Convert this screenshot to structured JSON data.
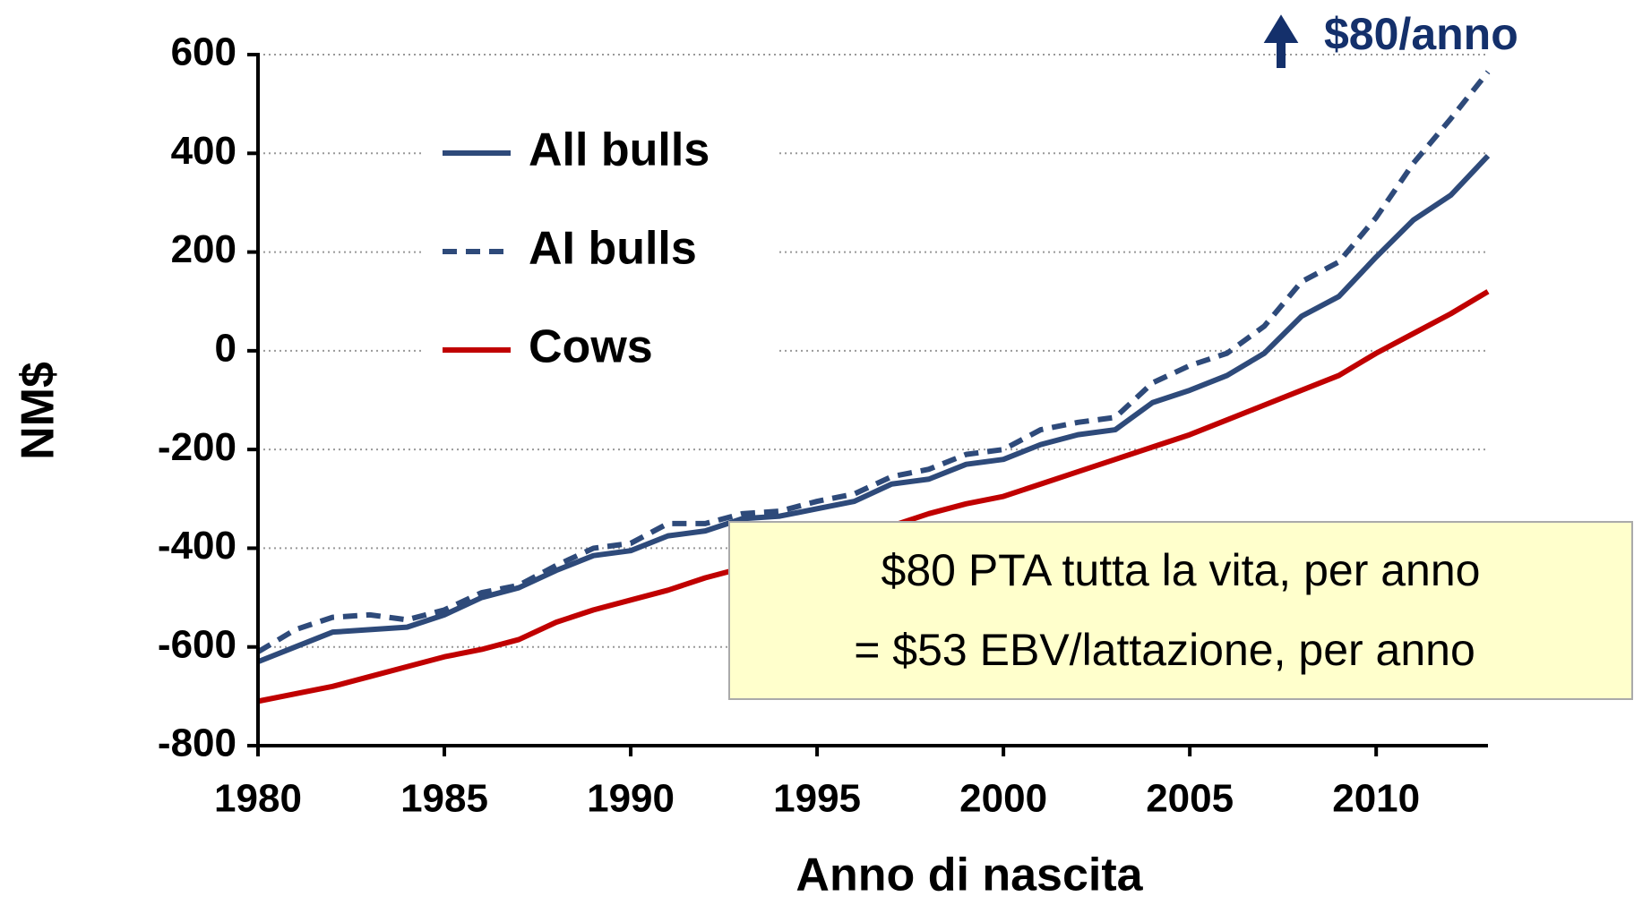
{
  "chart_data": {
    "type": "line",
    "annotation": "$80/anno",
    "box_lines": [
      "$80 PTA tutta la vita, per anno",
      "= $53 EBV/lattazione, per anno"
    ],
    "xlabel": "Anno di nascita",
    "ylabel": "NM$",
    "x": [
      1980,
      1981,
      1982,
      1983,
      1984,
      1985,
      1986,
      1987,
      1988,
      1989,
      1990,
      1991,
      1992,
      1993,
      1994,
      1995,
      1996,
      1997,
      1998,
      1999,
      2000,
      2001,
      2002,
      2003,
      2004,
      2005,
      2006,
      2007,
      2008,
      2009,
      2010,
      2011,
      2012,
      2013
    ],
    "series": [
      {
        "name": "All bulls",
        "color": "#2e4a7a",
        "dashed": false,
        "values": [
          -630,
          -600,
          -570,
          -565,
          -560,
          -535,
          -500,
          -480,
          -445,
          -415,
          -405,
          -375,
          -365,
          -340,
          -335,
          -320,
          -305,
          -270,
          -260,
          -230,
          -220,
          -190,
          -170,
          -160,
          -105,
          -80,
          -50,
          -5,
          70,
          110,
          190,
          265,
          315,
          395
        ]
      },
      {
        "name": "AI bulls",
        "color": "#2e4a7a",
        "dashed": true,
        "values": [
          -610,
          -565,
          -540,
          -535,
          -545,
          -525,
          -490,
          -475,
          -435,
          -400,
          -390,
          -350,
          -350,
          -330,
          -325,
          -305,
          -290,
          -255,
          -240,
          -210,
          -200,
          -160,
          -145,
          -135,
          -65,
          -30,
          -5,
          50,
          140,
          180,
          270,
          380,
          470,
          565
        ]
      },
      {
        "name": "Cows",
        "color": "#c00000",
        "dashed": false,
        "values": [
          -710,
          -695,
          -680,
          -660,
          -640,
          -620,
          -605,
          -585,
          -550,
          -525,
          -505,
          -485,
          -460,
          -440,
          -420,
          -400,
          -380,
          -355,
          -330,
          -310,
          -295,
          -270,
          -245,
          -220,
          -195,
          -170,
          -140,
          -110,
          -80,
          -50,
          -5,
          35,
          75,
          120
        ]
      }
    ],
    "xlim": [
      1980,
      2013
    ],
    "xticks": [
      1980,
      1985,
      1990,
      1995,
      2000,
      2005,
      2010
    ],
    "ylim": [
      -800,
      600
    ],
    "yticks": [
      -800,
      -600,
      -400,
      -200,
      0,
      200,
      400,
      600
    ],
    "grid": true
  }
}
